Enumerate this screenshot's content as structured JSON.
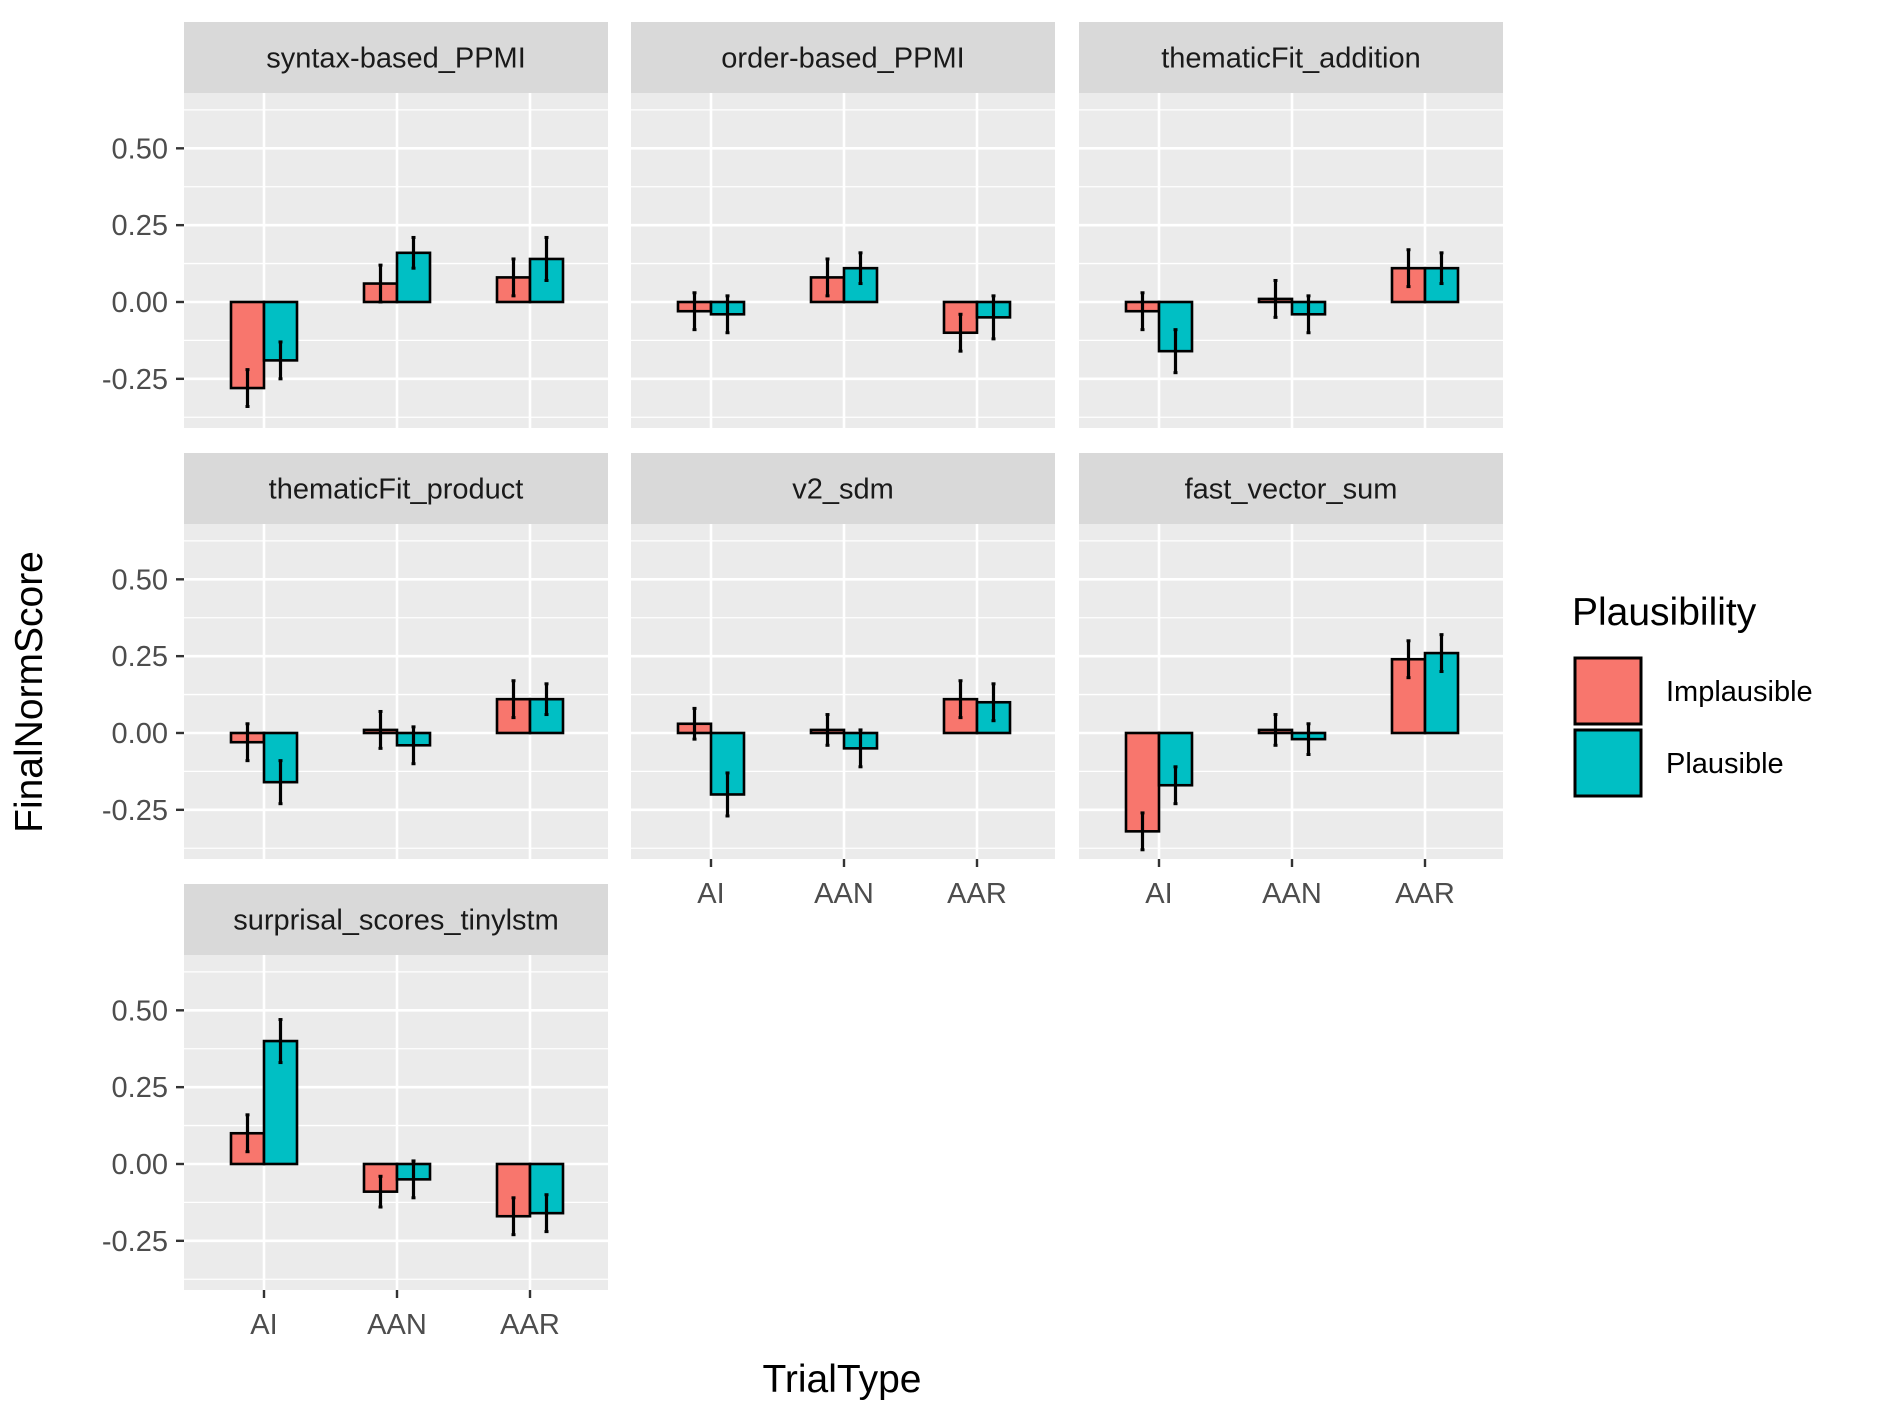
{
  "chart_data": {
    "type": "bar",
    "facet_by": "model",
    "x_name": "TrialType",
    "y_name": "FinalNormScore",
    "categories": [
      "AI",
      "AAN",
      "AAR"
    ],
    "ylim": [
      -0.41,
      0.68
    ],
    "yticks": [
      -0.25,
      0.0,
      0.25,
      0.5
    ],
    "ytick_labels": [
      "-0.25",
      "0.00",
      "0.25",
      "0.50"
    ],
    "grid": true,
    "legend": {
      "title": "Plausibility",
      "placement": "right",
      "entries": [
        {
          "name": "Implausible",
          "color": "#F8766D"
        },
        {
          "name": "Plausible",
          "color": "#00BFC4"
        }
      ]
    },
    "colors": {
      "panel_bg": "#EBEBEB",
      "grid": "#FFFFFF",
      "strip_bg": "#D9D9D9",
      "bar_outline": "#000000",
      "implausible": "#F8766D",
      "plausible": "#00BFC4"
    },
    "panels": [
      {
        "title": "syntax-based_PPMI",
        "series": [
          {
            "name": "Implausible",
            "values": [
              -0.28,
              0.06,
              0.08
            ],
            "err": [
              0.06,
              0.06,
              0.06
            ]
          },
          {
            "name": "Plausible",
            "values": [
              -0.19,
              0.16,
              0.14
            ],
            "err": [
              0.06,
              0.05,
              0.07
            ]
          }
        ]
      },
      {
        "title": "order-based_PPMI",
        "series": [
          {
            "name": "Implausible",
            "values": [
              -0.03,
              0.08,
              -0.1
            ],
            "err": [
              0.06,
              0.06,
              0.06
            ]
          },
          {
            "name": "Plausible",
            "values": [
              -0.04,
              0.11,
              -0.05
            ],
            "err": [
              0.06,
              0.05,
              0.07
            ]
          }
        ]
      },
      {
        "title": "thematicFit_addition",
        "series": [
          {
            "name": "Implausible",
            "values": [
              -0.03,
              0.01,
              0.11
            ],
            "err": [
              0.06,
              0.06,
              0.06
            ]
          },
          {
            "name": "Plausible",
            "values": [
              -0.16,
              -0.04,
              0.11
            ],
            "err": [
              0.07,
              0.06,
              0.05
            ]
          }
        ]
      },
      {
        "title": "thematicFit_product",
        "series": [
          {
            "name": "Implausible",
            "values": [
              -0.03,
              0.01,
              0.11
            ],
            "err": [
              0.06,
              0.06,
              0.06
            ]
          },
          {
            "name": "Plausible",
            "values": [
              -0.16,
              -0.04,
              0.11
            ],
            "err": [
              0.07,
              0.06,
              0.05
            ]
          }
        ]
      },
      {
        "title": "v2_sdm",
        "series": [
          {
            "name": "Implausible",
            "values": [
              0.03,
              0.01,
              0.11
            ],
            "err": [
              0.05,
              0.05,
              0.06
            ]
          },
          {
            "name": "Plausible",
            "values": [
              -0.2,
              -0.05,
              0.1
            ],
            "err": [
              0.07,
              0.06,
              0.06
            ]
          }
        ]
      },
      {
        "title": "fast_vector_sum",
        "series": [
          {
            "name": "Implausible",
            "values": [
              -0.32,
              0.01,
              0.24
            ],
            "err": [
              0.06,
              0.05,
              0.06
            ]
          },
          {
            "name": "Plausible",
            "values": [
              -0.17,
              -0.02,
              0.26
            ],
            "err": [
              0.06,
              0.05,
              0.06
            ]
          }
        ]
      },
      {
        "title": "surprisal_scores_tinylstm",
        "series": [
          {
            "name": "Implausible",
            "values": [
              0.1,
              -0.09,
              -0.17
            ],
            "err": [
              0.06,
              0.05,
              0.06
            ]
          },
          {
            "name": "Plausible",
            "values": [
              0.4,
              -0.05,
              -0.16
            ],
            "err": [
              0.07,
              0.06,
              0.06
            ]
          }
        ]
      }
    ]
  }
}
